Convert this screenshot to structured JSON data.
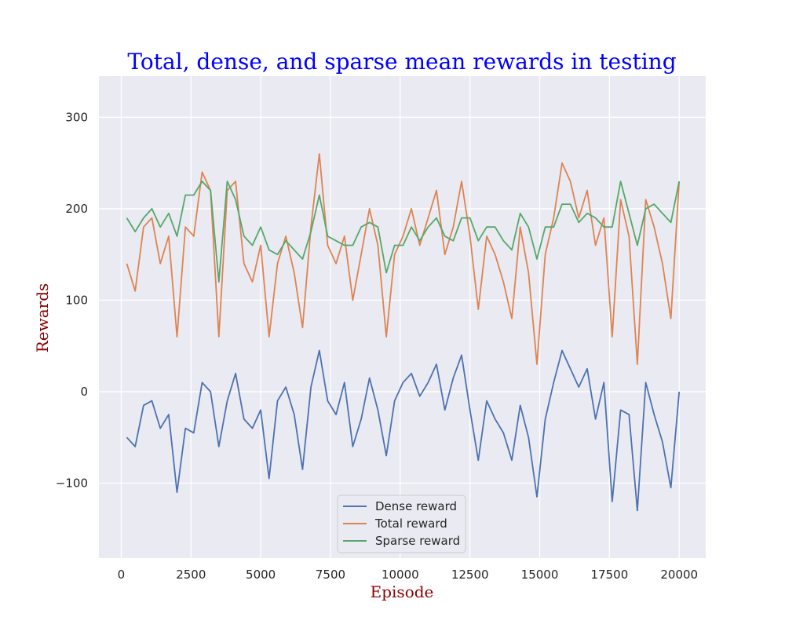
{
  "chart_data": {
    "type": "line",
    "title": "Total, dense, and sparse mean rewards in testing",
    "xlabel": "Episode",
    "ylabel": "Rewards",
    "xlim": [
      -800,
      20950
    ],
    "ylim": [
      -182,
      345
    ],
    "xticks": [
      0,
      2500,
      5000,
      7500,
      10000,
      12500,
      15000,
      17500,
      20000
    ],
    "xtick_labels": [
      "0",
      "2500",
      "5000",
      "7500",
      "10000",
      "12500",
      "15000",
      "17500",
      "20000"
    ],
    "yticks": [
      -100,
      0,
      100,
      200,
      300
    ],
    "ytick_labels": [
      "−100",
      "0",
      "100",
      "200",
      "300"
    ],
    "grid": true,
    "legend_position": "bottom-center",
    "x": [
      200,
      500,
      800,
      1100,
      1400,
      1700,
      2000,
      2300,
      2600,
      2900,
      3200,
      3500,
      3800,
      4100,
      4400,
      4700,
      5000,
      5300,
      5600,
      5900,
      6200,
      6500,
      6800,
      7100,
      7400,
      7700,
      8000,
      8300,
      8600,
      8900,
      9200,
      9500,
      9800,
      10100,
      10400,
      10700,
      11000,
      11300,
      11600,
      11900,
      12200,
      12500,
      12800,
      13100,
      13400,
      13700,
      14000,
      14300,
      14600,
      14900,
      15200,
      15500,
      15800,
      16100,
      16400,
      16700,
      17000,
      17300,
      17600,
      17900,
      18200,
      18500,
      18800,
      19100,
      19400,
      19700,
      20000
    ],
    "series": [
      {
        "name": "Dense reward",
        "color": "#4c72b0",
        "values": [
          -50,
          -60,
          -15,
          -10,
          -40,
          -25,
          -110,
          -40,
          -45,
          10,
          0,
          -60,
          -10,
          20,
          -30,
          -40,
          -20,
          -95,
          -10,
          5,
          -25,
          -85,
          5,
          45,
          -10,
          -25,
          10,
          -60,
          -30,
          15,
          -20,
          -70,
          -10,
          10,
          20,
          -5,
          10,
          30,
          -20,
          15,
          40,
          -20,
          -75,
          -10,
          -30,
          -45,
          -75,
          -15,
          -50,
          -115,
          -30,
          10,
          45,
          25,
          5,
          25,
          -30,
          10,
          -120,
          -20,
          -25,
          -130,
          10,
          -25,
          -55,
          -105,
          0
        ]
      },
      {
        "name": "Total reward",
        "color": "#dd8452",
        "values": [
          140,
          110,
          180,
          190,
          140,
          170,
          60,
          180,
          170,
          240,
          220,
          60,
          220,
          230,
          140,
          120,
          160,
          60,
          140,
          170,
          130,
          70,
          180,
          260,
          160,
          140,
          170,
          100,
          150,
          200,
          160,
          60,
          150,
          170,
          200,
          160,
          190,
          220,
          150,
          180,
          230,
          170,
          90,
          170,
          150,
          120,
          80,
          180,
          130,
          30,
          150,
          190,
          250,
          230,
          190,
          220,
          160,
          190,
          60,
          210,
          170,
          30,
          210,
          180,
          140,
          80,
          230
        ]
      },
      {
        "name": "Sparse reward",
        "color": "#55a868",
        "values": [
          190,
          175,
          190,
          200,
          180,
          195,
          170,
          215,
          215,
          230,
          220,
          120,
          230,
          210,
          170,
          160,
          180,
          155,
          150,
          165,
          155,
          145,
          175,
          215,
          170,
          165,
          160,
          160,
          180,
          185,
          180,
          130,
          160,
          160,
          180,
          165,
          180,
          190,
          170,
          165,
          190,
          190,
          165,
          180,
          180,
          165,
          155,
          195,
          180,
          145,
          180,
          180,
          205,
          205,
          185,
          195,
          190,
          180,
          180,
          230,
          195,
          160,
          200,
          205,
          195,
          185,
          230
        ]
      }
    ]
  }
}
